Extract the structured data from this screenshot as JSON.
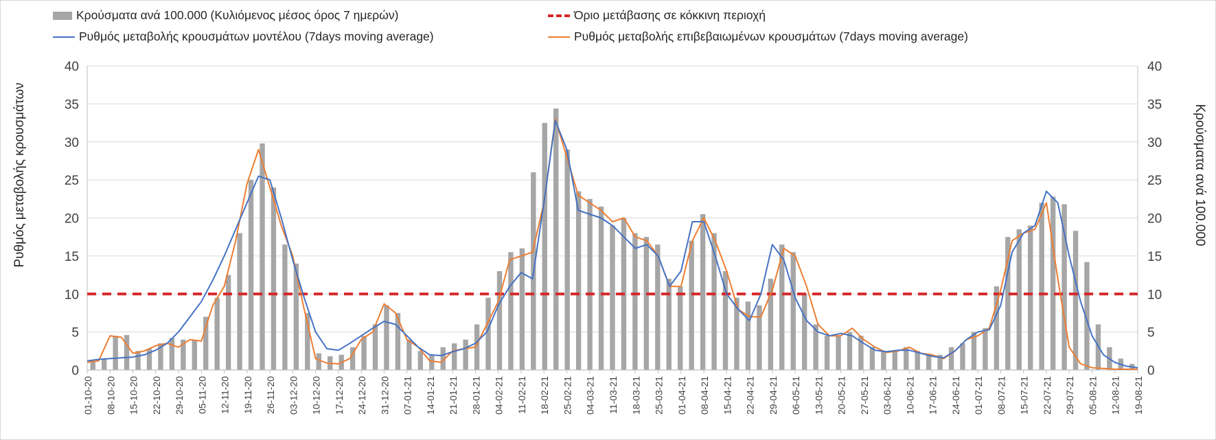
{
  "chart_data": {
    "type": "bar",
    "title": "",
    "ylabel_left": "Ρυθμός μεταβολής κρουσμάτων",
    "ylabel_right": "Κρούσματα ανά 100.000",
    "ylim_left": [
      0,
      40
    ],
    "ylim_right": [
      0,
      40
    ],
    "yticks": [
      "0",
      "5",
      "10",
      "15",
      "20",
      "25",
      "30",
      "35",
      "40"
    ],
    "x_start": "01-10-20",
    "x_end": "19-08-21",
    "xtick_labels": [
      "01-10-20",
      "08-10-20",
      "15-10-20",
      "22-10-20",
      "29-10-20",
      "05-11-20",
      "12-11-20",
      "19-11-20",
      "26-11-20",
      "03-12-20",
      "10-12-20",
      "17-12-20",
      "24-12-20",
      "31-12-20",
      "07-01-21",
      "14-01-21",
      "21-01-21",
      "28-01-21",
      "04-02-21",
      "11-02-21",
      "18-02-21",
      "25-02-21",
      "04-03-21",
      "11-03-21",
      "18-03-21",
      "25-03-21",
      "01-04-21",
      "08-04-21",
      "15-04-21",
      "22-04-21",
      "29-04-21",
      "06-05-21",
      "13-05-21",
      "20-05-21",
      "27-05-21",
      "03-06-21",
      "10-06-21",
      "17-06-21",
      "24-06-21",
      "01-07-21",
      "08-07-21",
      "15-07-21",
      "22-07-21",
      "29-07-21",
      "05-08-21",
      "12-08-21",
      "19-08-21"
    ],
    "grid": true,
    "legend_position": "top",
    "series": [
      {
        "name": "Κρούσματα ανά 100.000 (Κυλιόμενος μέσος όρος 7 ημερών)",
        "kind": "bar",
        "axis": "right",
        "color": "#a6a6a6",
        "values": [
          1.2,
          1.5,
          4.5,
          4.6,
          2.5,
          2.8,
          3.5,
          4.2,
          4.0,
          3.9,
          7.0,
          9.5,
          12.5,
          18.0,
          25.0,
          29.8,
          24.0,
          16.5,
          14.0,
          7.5,
          2.2,
          1.8,
          2.0,
          3.0,
          4.5,
          6.0,
          8.5,
          7.5,
          4.0,
          2.5,
          2.0,
          3.0,
          3.5,
          4.0,
          6.0,
          9.5,
          13.0,
          15.5,
          16.0,
          26.0,
          32.5,
          34.4,
          29.0,
          23.5,
          22.5,
          21.5,
          19.0,
          20.0,
          18.0,
          17.5,
          16.5,
          12.0,
          11.0,
          17.0,
          20.5,
          18.0,
          13.0,
          9.5,
          9.0,
          8.5,
          12.0,
          16.5,
          15.5,
          10.0,
          6.0,
          4.5,
          4.5,
          5.0,
          4.5,
          3.0,
          2.5,
          2.5,
          3.0,
          2.5,
          2.0,
          2.0,
          3.0,
          3.5,
          5.0,
          5.5,
          11.0,
          17.5,
          18.5,
          19.0,
          22.0,
          22.8,
          21.8,
          18.3,
          14.2,
          6.0,
          3.0,
          1.5,
          0.8
        ]
      },
      {
        "name": "Ρυθμός μεταβολής κρουσμάτων μοντέλου (7days moving average)",
        "kind": "line",
        "axis": "left",
        "color": "#4472c4",
        "values": [
          1.2,
          1.4,
          1.5,
          1.6,
          1.7,
          2.0,
          2.6,
          3.5,
          5.0,
          7.0,
          9.0,
          11.8,
          15.0,
          18.5,
          22.0,
          25.5,
          25.0,
          20.0,
          14.5,
          9.5,
          5.0,
          2.8,
          2.6,
          3.5,
          4.5,
          5.5,
          6.4,
          6.0,
          4.5,
          3.0,
          2.0,
          1.9,
          2.4,
          2.8,
          3.5,
          5.0,
          8.5,
          11.0,
          12.8,
          12.0,
          22.0,
          32.8,
          29.0,
          21.0,
          20.5,
          20.0,
          19.0,
          17.5,
          16.0,
          16.5,
          15.0,
          11.0,
          13.0,
          19.5,
          19.5,
          15.0,
          10.0,
          8.0,
          6.5,
          10.0,
          16.5,
          14.5,
          9.5,
          6.5,
          5.0,
          4.5,
          4.8,
          4.5,
          3.5,
          2.6,
          2.4,
          2.6,
          2.6,
          2.2,
          1.8,
          1.6,
          2.5,
          4.0,
          5.0,
          5.3,
          8.5,
          15.5,
          18.0,
          19.0,
          23.5,
          22.0,
          15.0,
          9.0,
          4.5,
          2.0,
          1.0,
          0.5,
          0.3
        ]
      },
      {
        "name": "Ρυθμός μεταβολής επιβεβαιωμένων κρουσμάτων (7days moving average)",
        "kind": "line",
        "axis": "left",
        "color": "#ed7d31",
        "values": [
          1.0,
          1.2,
          4.5,
          4.3,
          2.2,
          2.5,
          3.2,
          3.5,
          3.0,
          4.0,
          3.8,
          8.5,
          11.0,
          17.0,
          24.5,
          29.0,
          24.0,
          19.0,
          15.0,
          8.0,
          1.5,
          0.9,
          0.8,
          1.5,
          4.0,
          5.0,
          8.7,
          7.5,
          4.0,
          3.0,
          1.2,
          1.0,
          2.5,
          2.8,
          3.0,
          6.0,
          9.0,
          14.5,
          15.0,
          15.5,
          22.0,
          33.0,
          28.0,
          23.0,
          22.0,
          21.0,
          19.5,
          20.0,
          17.5,
          17.0,
          15.0,
          11.0,
          11.0,
          17.0,
          20.0,
          17.0,
          13.0,
          8.0,
          7.0,
          7.0,
          10.5,
          16.0,
          15.0,
          11.0,
          6.0,
          4.5,
          4.5,
          5.5,
          4.0,
          3.0,
          2.3,
          2.5,
          3.0,
          2.2,
          2.0,
          1.5,
          2.5,
          4.0,
          4.5,
          5.5,
          10.5,
          17.0,
          18.0,
          18.5,
          22.0,
          12.0,
          3.0,
          0.8,
          0.3,
          0.2,
          0.1,
          0.1,
          0.1
        ]
      },
      {
        "name": "Όριο μετάβασης σε κόκκινη περιοχή",
        "kind": "reference",
        "axis": "left",
        "color": "#d62728",
        "value": 10
      }
    ]
  }
}
